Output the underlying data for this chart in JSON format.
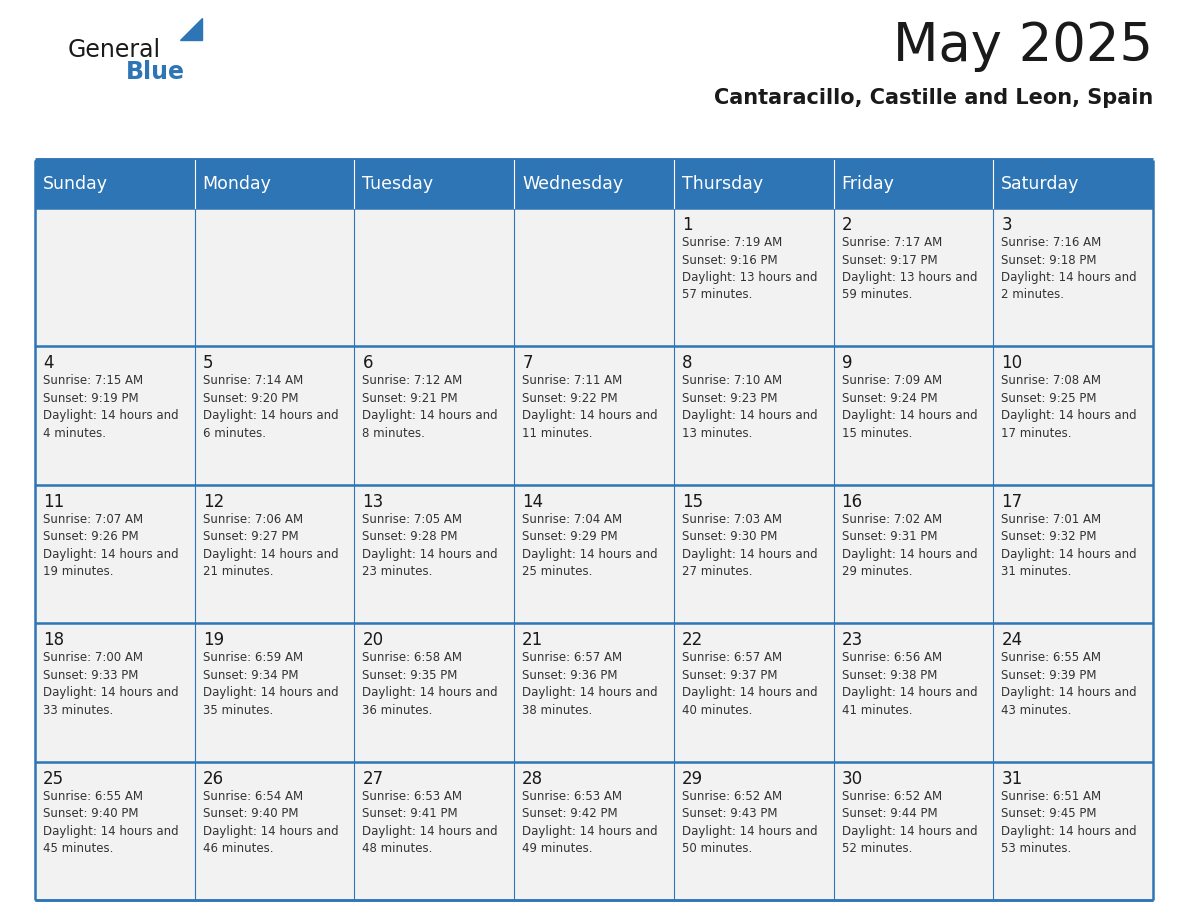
{
  "title": "May 2025",
  "subtitle": "Cantaracillo, Castille and Leon, Spain",
  "header_bg_color": "#2E75B6",
  "header_text_color": "#FFFFFF",
  "cell_bg_color": "#F2F2F2",
  "grid_line_color": "#2E75B6",
  "title_color": "#1a1a1a",
  "day_number_color": "#1a1a1a",
  "cell_text_color": "#333333",
  "logo_black_color": "#1a1a1a",
  "logo_blue_color": "#2E75B6",
  "days_of_week": [
    "Sunday",
    "Monday",
    "Tuesday",
    "Wednesday",
    "Thursday",
    "Friday",
    "Saturday"
  ],
  "calendar": [
    [
      null,
      null,
      null,
      null,
      {
        "day": "1",
        "sunrise": "7:19 AM",
        "sunset": "9:16 PM",
        "daylight": "13 hours and 57 minutes."
      },
      {
        "day": "2",
        "sunrise": "7:17 AM",
        "sunset": "9:17 PM",
        "daylight": "13 hours and 59 minutes."
      },
      {
        "day": "3",
        "sunrise": "7:16 AM",
        "sunset": "9:18 PM",
        "daylight": "14 hours and 2 minutes."
      }
    ],
    [
      {
        "day": "4",
        "sunrise": "7:15 AM",
        "sunset": "9:19 PM",
        "daylight": "14 hours and 4 minutes."
      },
      {
        "day": "5",
        "sunrise": "7:14 AM",
        "sunset": "9:20 PM",
        "daylight": "14 hours and 6 minutes."
      },
      {
        "day": "6",
        "sunrise": "7:12 AM",
        "sunset": "9:21 PM",
        "daylight": "14 hours and 8 minutes."
      },
      {
        "day": "7",
        "sunrise": "7:11 AM",
        "sunset": "9:22 PM",
        "daylight": "14 hours and 11 minutes."
      },
      {
        "day": "8",
        "sunrise": "7:10 AM",
        "sunset": "9:23 PM",
        "daylight": "14 hours and 13 minutes."
      },
      {
        "day": "9",
        "sunrise": "7:09 AM",
        "sunset": "9:24 PM",
        "daylight": "14 hours and 15 minutes."
      },
      {
        "day": "10",
        "sunrise": "7:08 AM",
        "sunset": "9:25 PM",
        "daylight": "14 hours and 17 minutes."
      }
    ],
    [
      {
        "day": "11",
        "sunrise": "7:07 AM",
        "sunset": "9:26 PM",
        "daylight": "14 hours and 19 minutes."
      },
      {
        "day": "12",
        "sunrise": "7:06 AM",
        "sunset": "9:27 PM",
        "daylight": "14 hours and 21 minutes."
      },
      {
        "day": "13",
        "sunrise": "7:05 AM",
        "sunset": "9:28 PM",
        "daylight": "14 hours and 23 minutes."
      },
      {
        "day": "14",
        "sunrise": "7:04 AM",
        "sunset": "9:29 PM",
        "daylight": "14 hours and 25 minutes."
      },
      {
        "day": "15",
        "sunrise": "7:03 AM",
        "sunset": "9:30 PM",
        "daylight": "14 hours and 27 minutes."
      },
      {
        "day": "16",
        "sunrise": "7:02 AM",
        "sunset": "9:31 PM",
        "daylight": "14 hours and 29 minutes."
      },
      {
        "day": "17",
        "sunrise": "7:01 AM",
        "sunset": "9:32 PM",
        "daylight": "14 hours and 31 minutes."
      }
    ],
    [
      {
        "day": "18",
        "sunrise": "7:00 AM",
        "sunset": "9:33 PM",
        "daylight": "14 hours and 33 minutes."
      },
      {
        "day": "19",
        "sunrise": "6:59 AM",
        "sunset": "9:34 PM",
        "daylight": "14 hours and 35 minutes."
      },
      {
        "day": "20",
        "sunrise": "6:58 AM",
        "sunset": "9:35 PM",
        "daylight": "14 hours and 36 minutes."
      },
      {
        "day": "21",
        "sunrise": "6:57 AM",
        "sunset": "9:36 PM",
        "daylight": "14 hours and 38 minutes."
      },
      {
        "day": "22",
        "sunrise": "6:57 AM",
        "sunset": "9:37 PM",
        "daylight": "14 hours and 40 minutes."
      },
      {
        "day": "23",
        "sunrise": "6:56 AM",
        "sunset": "9:38 PM",
        "daylight": "14 hours and 41 minutes."
      },
      {
        "day": "24",
        "sunrise": "6:55 AM",
        "sunset": "9:39 PM",
        "daylight": "14 hours and 43 minutes."
      }
    ],
    [
      {
        "day": "25",
        "sunrise": "6:55 AM",
        "sunset": "9:40 PM",
        "daylight": "14 hours and 45 minutes."
      },
      {
        "day": "26",
        "sunrise": "6:54 AM",
        "sunset": "9:40 PM",
        "daylight": "14 hours and 46 minutes."
      },
      {
        "day": "27",
        "sunrise": "6:53 AM",
        "sunset": "9:41 PM",
        "daylight": "14 hours and 48 minutes."
      },
      {
        "day": "28",
        "sunrise": "6:53 AM",
        "sunset": "9:42 PM",
        "daylight": "14 hours and 49 minutes."
      },
      {
        "day": "29",
        "sunrise": "6:52 AM",
        "sunset": "9:43 PM",
        "daylight": "14 hours and 50 minutes."
      },
      {
        "day": "30",
        "sunrise": "6:52 AM",
        "sunset": "9:44 PM",
        "daylight": "14 hours and 52 minutes."
      },
      {
        "day": "31",
        "sunrise": "6:51 AM",
        "sunset": "9:45 PM",
        "daylight": "14 hours and 53 minutes."
      }
    ]
  ]
}
